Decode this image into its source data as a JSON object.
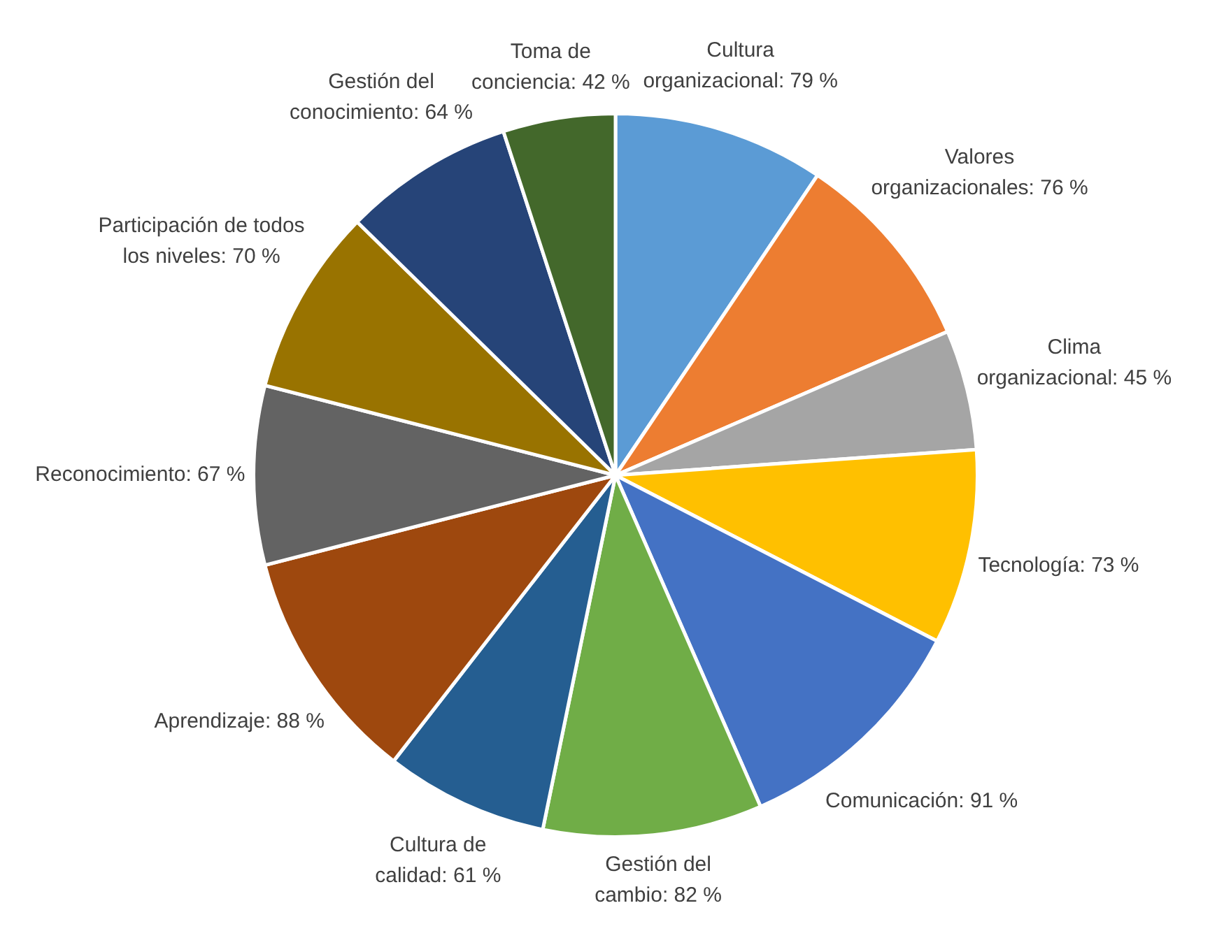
{
  "chart_data": {
    "type": "pie",
    "categories": [
      "Cultura organizacional",
      "Valores organizacionales",
      "Clima organizacional",
      "Tecnología",
      "Comunicación",
      "Gestión del cambio",
      "Cultura de calidad",
      "Aprendizaje",
      "Reconocimiento",
      "Participación de todos los niveles",
      "Gestión del conocimiento",
      "Toma de conciencia"
    ],
    "values": [
      79,
      76,
      45,
      73,
      91,
      82,
      61,
      88,
      67,
      70,
      64,
      42
    ],
    "value_labels": [
      "79 %",
      "76 %",
      "45 %",
      "73 %",
      "91 %",
      "82 %",
      "61 %",
      "88 %",
      "67 %",
      "70 %",
      "64 %",
      "42 %"
    ],
    "colors": [
      "#5b9bd5",
      "#ed7d31",
      "#a5a5a5",
      "#ffc000",
      "#4472c4",
      "#70ad47",
      "#255e91",
      "#9e480e",
      "#636363",
      "#997300",
      "#264478",
      "#43682b"
    ]
  }
}
